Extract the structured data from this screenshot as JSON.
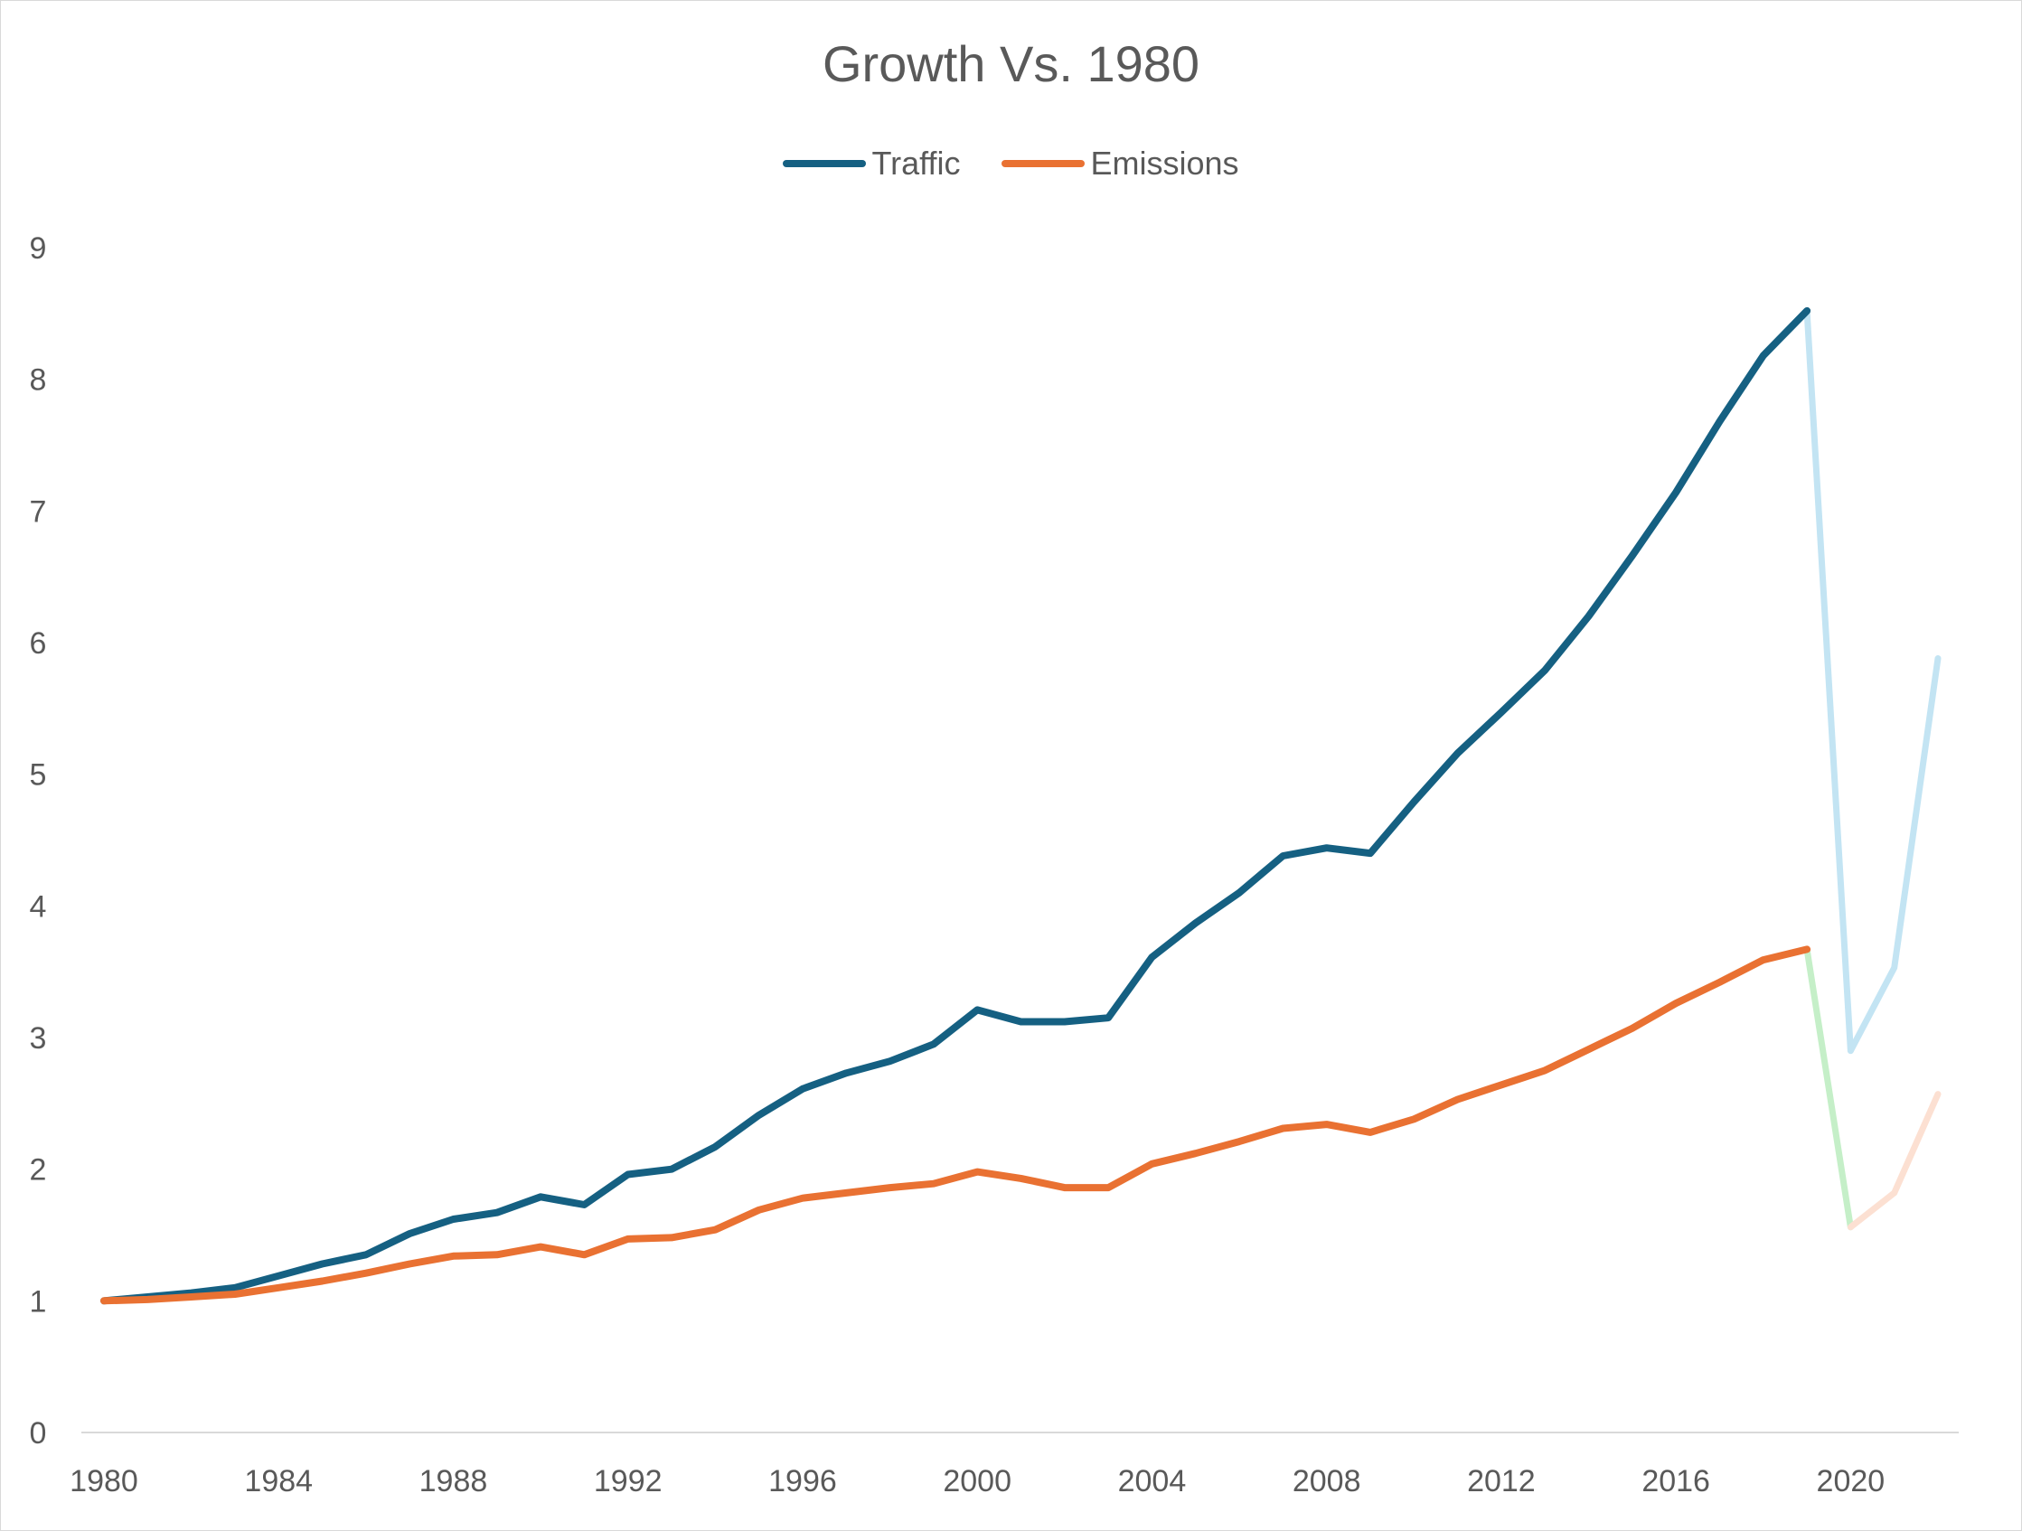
{
  "chart_data": {
    "type": "line",
    "title": "Growth Vs. 1980",
    "xlabel": "",
    "ylabel": "",
    "xlim": [
      1980,
      2022
    ],
    "ylim": [
      0,
      9
    ],
    "y_ticks": [
      "0",
      "1",
      "2",
      "3",
      "4",
      "5",
      "6",
      "7",
      "8",
      "9"
    ],
    "x_ticks": [
      "1980",
      "1984",
      "1988",
      "1992",
      "1996",
      "2000",
      "2004",
      "2008",
      "2012",
      "2016",
      "2020"
    ],
    "grid": false,
    "legend_position": "top",
    "x": [
      1980,
      1981,
      1982,
      1983,
      1984,
      1985,
      1986,
      1987,
      1988,
      1989,
      1990,
      1991,
      1992,
      1993,
      1994,
      1995,
      1996,
      1997,
      1998,
      1999,
      2000,
      2001,
      2002,
      2003,
      2004,
      2005,
      2006,
      2007,
      2008,
      2009,
      2010,
      2011,
      2012,
      2013,
      2014,
      2015,
      2016,
      2017,
      2018,
      2019,
      2020,
      2021,
      2022
    ],
    "series": [
      {
        "name": "Traffic",
        "color": "#156082",
        "faded_color": "#c3e4f3",
        "values": [
          1.0,
          1.03,
          1.06,
          1.1,
          1.19,
          1.28,
          1.35,
          1.51,
          1.62,
          1.67,
          1.79,
          1.73,
          1.96,
          2.0,
          2.17,
          2.41,
          2.61,
          2.73,
          2.82,
          2.95,
          3.21,
          3.12,
          3.12,
          3.15,
          3.61,
          3.87,
          4.1,
          4.38,
          4.44,
          4.4,
          4.79,
          5.16,
          5.47,
          5.79,
          6.2,
          6.66,
          7.14,
          7.68,
          8.18,
          8.52,
          2.9,
          3.53,
          5.88
        ]
      },
      {
        "name": "Emissions",
        "color": "#e97132",
        "faded_color": "#fce0d2",
        "values": [
          1.0,
          1.01,
          1.03,
          1.05,
          1.1,
          1.15,
          1.21,
          1.28,
          1.34,
          1.35,
          1.41,
          1.35,
          1.47,
          1.48,
          1.54,
          1.69,
          1.78,
          1.82,
          1.86,
          1.89,
          1.98,
          1.93,
          1.86,
          1.86,
          2.04,
          2.12,
          2.21,
          2.31,
          2.34,
          2.28,
          2.38,
          2.53,
          2.64,
          2.75,
          2.91,
          3.07,
          3.26,
          3.42,
          3.59,
          3.67,
          1.56,
          1.82,
          2.57
        ]
      }
    ],
    "faded_from_year": 2019,
    "drop_segment_color": "#c5efc8"
  }
}
